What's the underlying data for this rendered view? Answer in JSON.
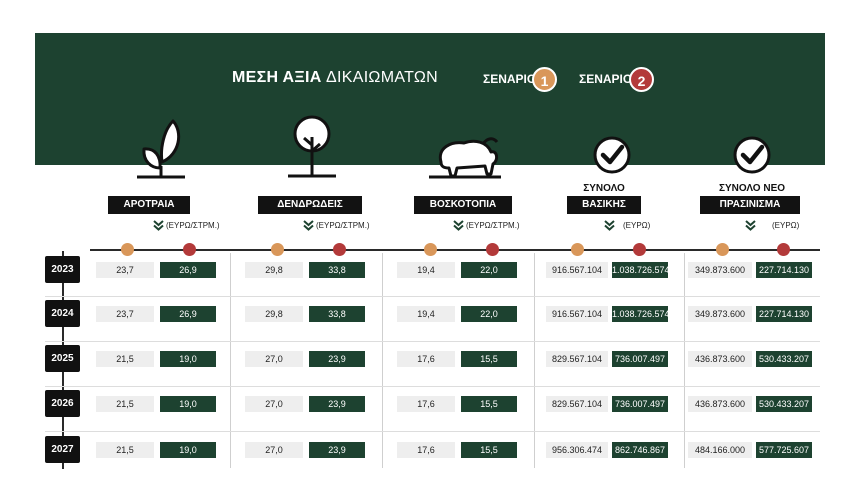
{
  "header": {
    "title_bold": "ΜΕΣΗ ΑΞΙΑ",
    "title_rest": "ΔΙΚΑΙΩΜΑΤΩΝ",
    "scenario1_label": "ΣΕΝΑΡΙΟ",
    "scenario1_num": "1",
    "scenario2_label": "ΣΕΝΑΡΙΟ",
    "scenario2_num": "2"
  },
  "colors": {
    "banner": "#1d4230",
    "scenario1": "#d9975a",
    "scenario2": "#b33a3a",
    "value_cell": "#1d4230"
  },
  "columns": [
    {
      "label": "ΑΡΟΤΡΑΙΑ",
      "unit": "(ΕΥΡΩ/ΣΤΡΜ.)",
      "icon": "sprout-icon"
    },
    {
      "label": "ΔΕΝΔΡΩΔΕΙΣ",
      "unit": "(ΕΥΡΩ/ΣΤΡΜ.)",
      "icon": "tree-icon"
    },
    {
      "label": "ΒΟΣΚΟΤΟΠΙΑ",
      "unit": "(ΕΥΡΩ/ΣΤΡΜ.)",
      "icon": "sheep-icon"
    },
    {
      "label_top": "ΣΥΝΟΛΟ",
      "label": "ΒΑΣΙΚΗΣ",
      "unit": "(ΕΥΡΩ)",
      "icon": "check-icon"
    },
    {
      "label_top": "ΣΥΝΟΛΟ ΝΕΟ",
      "label": "ΠΡΑΣΙΝΙΣΜΑ",
      "unit": "(ΕΥΡΩ)",
      "icon": "check-icon"
    }
  ],
  "chart_data": {
    "type": "table",
    "title": "ΜΕΣΗ ΑΞΙΑ ΔΙΚΑΙΩΜΑΤΩΝ",
    "series": [
      {
        "name": "ΣΕΝΑΡΙΟ 1"
      },
      {
        "name": "ΣΕΝΑΡΙΟ 2"
      }
    ],
    "rows": [
      {
        "year": "2023",
        "values": [
          [
            "23,7",
            "26,9"
          ],
          [
            "29,8",
            "33,8"
          ],
          [
            "19,4",
            "22,0"
          ],
          [
            "916.567.104",
            "1.038.726.574"
          ],
          [
            "349.873.600",
            "227.714.130"
          ]
        ]
      },
      {
        "year": "2024",
        "values": [
          [
            "23,7",
            "26,9"
          ],
          [
            "29,8",
            "33,8"
          ],
          [
            "19,4",
            "22,0"
          ],
          [
            "916.567.104",
            "1.038.726.574"
          ],
          [
            "349.873.600",
            "227.714.130"
          ]
        ]
      },
      {
        "year": "2025",
        "values": [
          [
            "21,5",
            "19,0"
          ],
          [
            "27,0",
            "23,9"
          ],
          [
            "17,6",
            "15,5"
          ],
          [
            "829.567.104",
            "736.007.497"
          ],
          [
            "436.873.600",
            "530.433.207"
          ]
        ]
      },
      {
        "year": "2026",
        "values": [
          [
            "21,5",
            "19,0"
          ],
          [
            "27,0",
            "23,9"
          ],
          [
            "17,6",
            "15,5"
          ],
          [
            "829.567.104",
            "736.007.497"
          ],
          [
            "436.873.600",
            "530.433.207"
          ]
        ]
      },
      {
        "year": "2027",
        "values": [
          [
            "21,5",
            "19,0"
          ],
          [
            "27,0",
            "23,9"
          ],
          [
            "17,6",
            "15,5"
          ],
          [
            "956.306.474",
            "862.746.867"
          ],
          [
            "484.166.000",
            "577.725.607"
          ]
        ]
      }
    ]
  }
}
